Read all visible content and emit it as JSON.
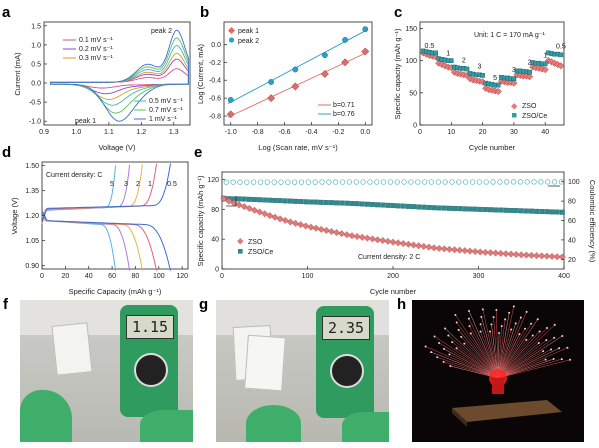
{
  "panels": {
    "a": {
      "label": "a",
      "xlabel": "Voltage (V)",
      "ylabel": "Current (mA)",
      "xticks": [
        "0.9",
        "1.0",
        "1.1",
        "1.2",
        "1.3"
      ],
      "yticks": [
        "1.5",
        "1.0",
        "0.5",
        "0.0",
        "-0.5",
        "-1.0"
      ],
      "peak1": "peak 1",
      "peak2": "peak 2",
      "legend_top": [
        "0.1 mV s⁻¹",
        "0.2 mV s⁻¹",
        "0.3 mV s⁻¹"
      ],
      "legend_bottom": [
        "0.5 mV s⁻¹",
        "0.7 mV s⁻¹",
        "1 mV s⁻¹"
      ]
    },
    "b": {
      "label": "b",
      "xlabel": "Log (Scan rate, mV s⁻¹)",
      "ylabel": "Log (Current, mA)",
      "xticks": [
        "-1.0",
        "-0.8",
        "-0.6",
        "-0.4",
        "-0.2",
        "0.0"
      ],
      "yticks": [
        "0.0",
        "-0.2",
        "-0.4",
        "-0.6",
        "-0.8"
      ],
      "legend": [
        "peak 1",
        "peak 2"
      ],
      "fits": [
        "b=0.71",
        "b=0.76"
      ]
    },
    "c": {
      "label": "c",
      "xlabel": "Cycle number",
      "ylabel": "Specific capacity (mAh g⁻¹)",
      "xticks": [
        "0",
        "10",
        "20",
        "30",
        "40"
      ],
      "yticks": [
        "150",
        "100",
        "50",
        "0"
      ],
      "unit_note": "Unit: 1 C = 170 mA g⁻¹",
      "rate_labels": [
        "0.5",
        "1",
        "2",
        "3",
        "5",
        "3",
        "2",
        "1",
        "0.5"
      ],
      "legend": [
        "ZSO",
        "ZSO/Ce"
      ]
    },
    "d": {
      "label": "d",
      "xlabel": "Specific Capacity (mAh g⁻¹)",
      "ylabel": "Voltage (V)",
      "xticks": [
        "0",
        "20",
        "40",
        "60",
        "80",
        "100",
        "120"
      ],
      "yticks": [
        "1.50",
        "1.35",
        "1.20",
        "1.05",
        "0.90"
      ],
      "note": "Current density: C",
      "rate_labels": [
        "5",
        "3",
        "2",
        "1",
        "0.5"
      ]
    },
    "e": {
      "label": "e",
      "xlabel": "Cycle number",
      "ylabel": "Specific capacity (mAh g⁻¹)",
      "y2label": "Coulombic efficiency (%)",
      "xticks": [
        "0",
        "100",
        "200",
        "300",
        "400"
      ],
      "yticks": [
        "120",
        "80",
        "40",
        "0"
      ],
      "y2ticks": [
        "100",
        "80",
        "60",
        "40",
        "20"
      ],
      "legend": [
        "ZSO",
        "ZSO/Ce"
      ],
      "note": "Current density: 2 C"
    },
    "f": {
      "label": "f",
      "display": "1.15"
    },
    "g": {
      "label": "g",
      "display": "2.35"
    },
    "h": {
      "label": "h"
    }
  },
  "chart_data": [
    {
      "id": "a",
      "type": "line",
      "series": [
        {
          "name": "0.1 mV s⁻¹",
          "color": "#d94f8a",
          "x": [
            0.9,
            1.0,
            1.1,
            1.2,
            1.25,
            1.3
          ],
          "y": [
            0.0,
            0.0,
            0.0,
            0.05,
            0.15,
            0.35
          ]
        },
        {
          "name": "0.2 mV s⁻¹",
          "color": "#8a4ad1",
          "x": [
            0.9,
            1.0,
            1.1,
            1.2,
            1.25,
            1.3
          ],
          "y": [
            0.0,
            0.0,
            0.02,
            0.1,
            0.3,
            0.6
          ]
        },
        {
          "name": "0.3 mV s⁻¹",
          "color": "#d4a21f",
          "x": [
            0.9,
            1.0,
            1.1,
            1.2,
            1.25,
            1.3
          ],
          "y": [
            0.0,
            0.0,
            0.04,
            0.15,
            0.4,
            0.75
          ]
        },
        {
          "name": "0.5 mV s⁻¹",
          "color": "#3cb8c2",
          "x": [
            0.9,
            1.0,
            1.1,
            1.2,
            1.25,
            1.3
          ],
          "y": [
            0.0,
            0.0,
            0.05,
            0.2,
            0.55,
            0.95
          ]
        },
        {
          "name": "0.7 mV s⁻¹",
          "color": "#5fbf5f",
          "x": [
            0.9,
            1.0,
            1.1,
            1.2,
            1.25,
            1.3
          ],
          "y": [
            0.0,
            0.0,
            0.06,
            0.25,
            0.7,
            1.15
          ]
        },
        {
          "name": "1 mV s⁻¹",
          "color": "#3b6fd1",
          "x": [
            0.9,
            1.0,
            1.1,
            1.2,
            1.25,
            1.3
          ],
          "y": [
            0.0,
            0.0,
            0.08,
            0.3,
            0.85,
            1.35
          ]
        }
      ],
      "reduction_min": [
        -0.1,
        -0.25,
        -0.4,
        -0.55,
        -0.75,
        -0.95
      ],
      "xlim": [
        0.9,
        1.35
      ],
      "ylim": [
        -1.1,
        1.6
      ]
    },
    {
      "id": "b",
      "type": "scatter",
      "series": [
        {
          "name": "peak 1",
          "color": "#e06b6b",
          "x": [
            -1.0,
            -0.7,
            -0.52,
            -0.3,
            -0.15,
            0.0
          ],
          "y": [
            -0.78,
            -0.6,
            -0.47,
            -0.33,
            -0.2,
            -0.08
          ]
        },
        {
          "name": "peak 2",
          "color": "#2a9fc9",
          "x": [
            -1.0,
            -0.7,
            -0.52,
            -0.3,
            -0.15,
            0.0
          ],
          "y": [
            -0.62,
            -0.42,
            -0.28,
            -0.12,
            0.05,
            0.17
          ]
        }
      ],
      "fits": [
        {
          "label": "b=0.71",
          "slope": 0.71
        },
        {
          "label": "b=0.76",
          "slope": 0.76
        }
      ],
      "xlim": [
        -1.05,
        0.05
      ],
      "ylim": [
        -0.9,
        0.25
      ]
    },
    {
      "id": "c",
      "type": "scatter",
      "series": [
        {
          "name": "ZSO",
          "color": "#e87a7a",
          "values": [
            112,
            110,
            108,
            107,
            106,
            96,
            94,
            92,
            90,
            89,
            82,
            80,
            79,
            78,
            77,
            72,
            70,
            69,
            68,
            67,
            57,
            55,
            54,
            53,
            52,
            68,
            67,
            66,
            66,
            65,
            78,
            77,
            76,
            76,
            75,
            90,
            89,
            88,
            87,
            86,
            100,
            98,
            96,
            94,
            92
          ]
        },
        {
          "name": "ZSO/Ce",
          "color": "#2f9da8",
          "values": [
            115,
            114,
            113,
            112,
            112,
            103,
            102,
            101,
            100,
            100,
            90,
            89,
            88,
            88,
            87,
            80,
            79,
            78,
            78,
            77,
            65,
            64,
            63,
            62,
            62,
            74,
            73,
            73,
            72,
            72,
            84,
            84,
            83,
            83,
            82,
            97,
            96,
            96,
            95,
            95,
            112,
            111,
            110,
            110,
            109
          ]
        }
      ],
      "xlim": [
        0,
        46
      ],
      "ylim": [
        0,
        160
      ]
    },
    {
      "id": "d",
      "type": "line",
      "series": [
        {
          "name": "5",
          "color": "#5ab0e0",
          "capacity": 63
        },
        {
          "name": "3",
          "color": "#b07ad8",
          "capacity": 75
        },
        {
          "name": "2",
          "color": "#e0b84a",
          "capacity": 86
        },
        {
          "name": "1",
          "color": "#e05f8a",
          "capacity": 98
        },
        {
          "name": "0.5",
          "color": "#3c6fd0",
          "capacity": 110
        }
      ],
      "xlim": [
        0,
        125
      ],
      "ylim": [
        0.88,
        1.52
      ]
    },
    {
      "id": "e",
      "type": "scatter",
      "series": [
        {
          "name": "ZSO",
          "color": "#e07a7a",
          "x": [
            0,
            10,
            20,
            40,
            60,
            80,
            100,
            150,
            200,
            250,
            300,
            350,
            400
          ],
          "y": [
            95,
            90,
            86,
            78,
            70,
            63,
            57,
            45,
            36,
            28,
            23,
            19,
            16
          ]
        },
        {
          "name": "ZSO/Ce",
          "color": "#2f8a8f",
          "x": [
            0,
            10,
            20,
            40,
            60,
            80,
            100,
            150,
            200,
            250,
            300,
            350,
            400
          ],
          "y": [
            95,
            94,
            94,
            93,
            92,
            91,
            90,
            88,
            85,
            82,
            80,
            78,
            76
          ]
        }
      ],
      "ce": {
        "x": [
          0,
          50,
          100,
          150,
          200,
          250,
          300,
          350,
          400
        ],
        "y": [
          99.5,
          99.6,
          99.6,
          99.7,
          99.7,
          99.7,
          99.7,
          99.8,
          99.8
        ]
      },
      "xlim": [
        0,
        400
      ],
      "ylim": [
        0,
        130
      ],
      "y2lim": [
        10,
        110
      ]
    }
  ]
}
